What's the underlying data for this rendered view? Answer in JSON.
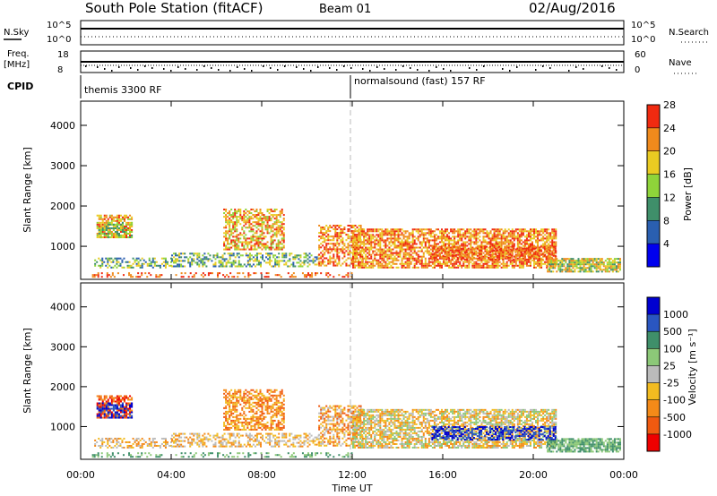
{
  "header": {
    "title": "South Pole Station (fitACF)",
    "beam": "Beam 01",
    "date": "02/Aug/2016"
  },
  "sky_panel": {
    "left_label": "N.Sky",
    "right_label": "N.Search",
    "left_ticks": [
      "10^5",
      "10^0"
    ],
    "right_ticks": [
      "10^5",
      "10^0"
    ]
  },
  "freq_panel": {
    "left_label_line1": "Freq.",
    "left_label_line2": "[MHz]",
    "right_label": "Nave",
    "left_ticks": [
      "18",
      "8"
    ],
    "right_ticks": [
      "60",
      "0"
    ]
  },
  "cpid": {
    "label": "CPID",
    "modes": [
      {
        "name": "themis 3300 RF",
        "start_hour": 0
      },
      {
        "name": "normalsound (fast) 157 RF",
        "start_hour": 12
      }
    ]
  },
  "x_axis": {
    "label": "Time UT",
    "ticks": [
      "00:00",
      "04:00",
      "08:00",
      "12:00",
      "16:00",
      "20:00",
      "00:00"
    ]
  },
  "chart_data": [
    {
      "type": "heatmap",
      "name": "power",
      "ylabel": "Slant Range [km]",
      "yticks": [
        1000,
        2000,
        3000,
        4000
      ],
      "ylim": [
        180,
        4600
      ],
      "xlim": [
        0,
        24
      ],
      "colorbar": {
        "label": "Power [dB]",
        "ticks": [
          "4",
          "8",
          "12",
          "16",
          "20",
          "24",
          "28"
        ]
      },
      "colors": [
        "#0000ee",
        "#2a5fb0",
        "#3f8f6a",
        "#8fd43a",
        "#eacb22",
        "#f08a1c",
        "#f02a10"
      ]
    },
    {
      "type": "heatmap",
      "name": "velocity",
      "ylabel": "Slant Range [km]",
      "yticks": [
        1000,
        2000,
        3000,
        4000
      ],
      "ylim": [
        180,
        4600
      ],
      "xlim": [
        0,
        24
      ],
      "colorbar": {
        "label": "Velocity [m s⁻¹]",
        "ticks": [
          "-1000",
          "-500",
          "-100",
          "-25",
          "25",
          "100",
          "500",
          "1000"
        ]
      },
      "colors": [
        "#ee0000",
        "#f05a10",
        "#f48a18",
        "#f2bb20",
        "#bbbbbb",
        "#8cc878",
        "#3f8f6a",
        "#2a56c0",
        "#0000d0"
      ]
    }
  ]
}
